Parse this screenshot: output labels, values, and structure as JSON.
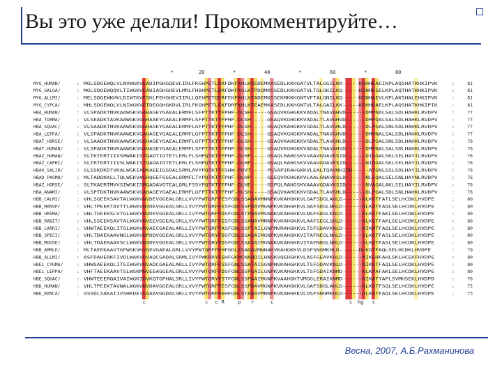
{
  "slide": {
    "title": "Вы это уже делали! Прокомментируйте…",
    "footer": "Весна, 2007, А.Б.Рахманинова"
  },
  "alignment": {
    "ruler_marks": [
      {
        "col": 27,
        "label": "*"
      },
      {
        "col": 36,
        "label": "20"
      },
      {
        "col": 46,
        "label": "*"
      },
      {
        "col": 56,
        "label": "40"
      },
      {
        "col": 66,
        "label": "*"
      },
      {
        "col": 76,
        "label": "60"
      },
      {
        "col": 86,
        "label": "*"
      },
      {
        "col": 96,
        "label": "80"
      }
    ],
    "rows": [
      {
        "name": "MYG_HUMAN/",
        "seq": "MGLSDGEWQLVLNVWGKVEADIPGHGQEVLIRLFKGHPETLEKFDKFKHLKSEDEMKASEDLKKHGATVLTALGGILKK-----KGHHEAEIKPLAQSHATKHKIPVK",
        "end": "81"
      },
      {
        "name": "MYG_GALGA/",
        "seq": "MGLSDQEWQQVLTIWGKVEADIAGHGHEVLMRLFHDHPETLDRFDKFKGLKTPDQMKGSEDLKKHGATVLTQLGKILKQ-----KGNHESELKPLAQTHATKHKIPVK",
        "end": "81"
      },
      {
        "name": "MYG_ALLMI/",
        "seq": "MELSDQEWKHVLDIWTKVESKLPEHGHEVIIRLLQEHPETQERFEKFKHLKTADEMKSSEKMKKHGNTVFTALGNILKQ-----KGNHAEVLKPLAKSHALEHKIPVK",
        "end": "81"
      },
      {
        "name": "MYG_CYPCA/",
        "seq": "MHLSDGEWQLVLNIWGKVETDEGGHGKDVLIRLFKGHPETLEKFDRFKHLKTEAEMKASEDLKKHGNTVLTALGAILKK-----KGHHDAELKPLAQSHATKHKIPIK",
        "end": "81"
      },
      {
        "name": "HBA_HUMAN/",
        "seq": "VLSPADKTNVKAAWGKVGAHAGEYGAEALERMFLSFPTTKTYFPHF-DLSH-----GSAQVKGHGKKVADALTNAVAHVD------DMPNALSALSDLHAHKLRVDPV",
        "end": "77"
      },
      {
        "name": "HBA_TORMA/",
        "seq": "VLSEADKTAVKAAWGKVGGHAAEYGAEALERMFLSFPTTKTYFPHF-DLSH-----GSAQVKGHGKKVADALTLAVGHVD------DMPQALSALSDLHAHKLRVDPV",
        "end": "77"
      },
      {
        "name": "HBA_SQUAC/",
        "seq": "VLSAADKTNVKAAWSKVGGHAGEYGAEALERMFLGFPTTKTYFPHF-DLSH-----GSAQVKAHGKKVGDALTLAVGHLD------DLPGALSNLSDLHAHKLRVDPV",
        "end": "77"
      },
      {
        "name": "HBA_LEPPA/",
        "seq": "VLSPADKTNVKAAWEKVGAHAGEYGAEALERMFLGFPTTKTYFPHF-DLSH-----GSAQVKGHGKKVADALTNAVGHVD------DMPNALSALSDLHAHKLRVDPV",
        "end": "77"
      },
      {
        "name": "HBAT_HORSE/",
        "seq": "VLSAADKTNVKAAWSKVGGHAGEYGAEALERMFLGFPTTKTYFPHF-DLSH-----GSAQVKAHGKKVGDALTLAVGHLD------DLPGALSNLSDLHAHKLRVDPV",
        "end": "76"
      },
      {
        "name": "HBAT_HUMAN/",
        "seq": "VLSPADKTNVKAAWGKVGAHAGEYGAEALERMFLSFPTTKTYFPHF-DLSH-----GSAQVKGHGKKVADALTNAVAHVD------DMPNALSALSDLHAHKLRVDPV",
        "end": "76"
      },
      {
        "name": "HBAZ_HUMAN/",
        "seq": "SLTKTERTIIVSMWAKISTQADTIGTETLERLFLSHPQTKTYFPHF-DLHP-----GSAQLRAHGSKVVAAVGDAVKSID------DIGGALSKLSELHAYILRVDPV",
        "end": "76"
      },
      {
        "name": "HBAZ_CAPHI/",
        "seq": "SLTRTERTIIVSLWAKISTQADAIGTETLERLFLSHPQTKTYFPHF-DLHP-----GSAQLRAHGSKVVAAVGDAVKSID------NIGGALSKLSELHAYILRVDPV",
        "end": "76"
      },
      {
        "name": "HBA4_SALIR/",
        "seq": "SLSSKDKDTVKALWGKIADKAEEIGSDALSRMLAVYPQTKTYFSHW-PDVT-----PGSAPIRAHGKKVLEALTQAVNHIDD-----ATGNLSSLSDLHAYILRVDPV",
        "end": "76"
      },
      {
        "name": "HBAD_PASMO/",
        "seq": "MLTADDKKLLTQLWEKVAGHQEEFGSEALQRMFLTYPQTKTYFPHF-DLHP-----GSEQVRGHGKKVLAALGNAVKSLD------NLSQALSELSNLHAYNLRVDPV",
        "end": "76"
      },
      {
        "name": "HBAZ_HORSE/",
        "seq": "SLTKAERTMVVSIWGKISMQADAVGTEALQRLFSSYPQTKTYFPHF-DLHE-----GSPQLRAHGSKVAAAVGDAVKSID------NVAGALAKLSELHAYILRVDPV",
        "end": "76"
      },
      {
        "name": "HBA_ANAMI/",
        "seq": "VLSPTDKTNVKAAWSKVGAHAGEYGAEALERMFLGFPTTKTYFPHF-DLSH-----GSAQVKAHGKKVGDALTLAVGHLD------DLPGALSDLSNLHAHKLRVDPV",
        "end": "76"
      },
      {
        "name": "HBB_CALMI/",
        "seq": "VHLSGEEKSAVTALWGKVNVDEVGGEALGRLLVVYPWTQRFFESFGDLSSADAVMNNPKVKAHGKKVLGAFSDGLAHLD------NLKGTFATLSELHCDKLHVDPE",
        "end": "80"
      },
      {
        "name": "HBB_MANSP/",
        "seq": "VHLTPEEKTAVTTLWGKVNVDEVGGEALGRLLVVYPWTQRFFESFGDLSSPDAVMGNPKVKAHGKKVLGAFSDGLNHLD------NLKGTFAQLSELHCDKLHVDPE",
        "end": "80"
      },
      {
        "name": "HBB_URSMA/",
        "seq": "VHLTGEEKSLVTGLWGKVNVDEVGGEALGRLLIVYPWTQRFFDSFGDLSTPDAVMSNAKVKAHGKKVLNSFSDGLKNLD------NLKGTFAKLSELHCDKLHVDPE",
        "end": "80"
      },
      {
        "name": "HBB_RABIT/",
        "seq": "VHLSSEEKSAVTALWGKVNVEEVGGEALGRLLVVYPWTQRFFESFGDLSSANAVMNNPKVKAHGKKVLAAFSEGLSHLD------NLKGTFAKLSELHCDKLHVDPE",
        "end": "80"
      },
      {
        "name": "HBB_LARRI/",
        "seq": "VHWTAEEKQLITGLWGKVNVAECGAEALARLLIVYPWTQRFFASFGNLSSPTAILGNPMVRAHGKKVLTSFGDAVKNLD------NIKNTFAQLSELHCDKLHVDPE",
        "end": "80"
      },
      {
        "name": "HBB_SPECI/",
        "seq": "VHLTDAEKAAVNGLWGKVNPDDVGGEALGRLLVVYPWTQRYFDSFGDLSSASAIMGNPKVKAHGKKVITAFNEGLNHLD------SLKGTFASLSELHCDKLHVDPE",
        "end": "80"
      },
      {
        "name": "HBB_MOUSE/",
        "seq": "VHLTDAEKAAVSCLWGKVNSDEVGGEALGRLLVVYPWTQRYFDSFGDLSSASAIMGNAKVKAHGKKVITAFNDGLNHLD------SLKGTFASLSELHCDKLHVDPE",
        "end": "80"
      },
      {
        "name": "HBB_AMMLE/",
        "seq": "MLTAEEKAAVTGFWGKVKVDEVGAEALGRLLVVYPWTQRFFEHFGDLSSADAVMNNAKVKAHGKKVLDSFSNGMKHLD------DLKGTFAQLSELHCDKLHVDPE",
        "end": "79"
      },
      {
        "name": "HBB_ALLMI/",
        "seq": "ASFDAHERKFIVDLWAKVDVAQCGADALSRMLIVYPWKRRYFEHFGKMCNAHDILHNSKVQEHGKKVLASFGEAVKHLD------NIKGHFAHLSKLHCEKFHVDPE",
        "end": "80"
      },
      {
        "name": "HBE1_CYGMA/",
        "seq": "VHWSAEEKQLITSIWGKVNVADCGAEALARLLIVYPWTQRFFSSFGNLSSATAISGNPNVKAHGKKVLTSFGDAVKNLD------NIKGTFAQLSELHCDKLHVDPE",
        "end": "80"
      },
      {
        "name": "HBE1_LEPPA/",
        "seq": "VHFTAEEKAAVTSLWSKMNVEEAGGEALGRLLVVYPWTQRFFDSFGNLSSPSAILGNPKVKAHGKKVLTSFGDAIKNMD------NLKPAFAKLSELHCDKLHVDPE",
        "end": "80"
      },
      {
        "name": "HBE_SQUAC/",
        "seq": "VHWTEEERQAIVAIWGKIDVKQTGPHALSRLLIVYPWTQRYFSTFGNLSSPAAIMGNPKVAAHGKTVMGGLERAIKNMD------NIKATYAPLSVMHSEKLHVDPD",
        "end": "76"
      },
      {
        "name": "HBD_HUMAN/",
        "seq": "VHLTPEEKTAVNALWGKVNVDAVGGEALGRLLVVYPWTQRFFESFGDLSSPDAVMGNPKVKAHGKKVLGAFSDGLAHLD------NLKGTFSQLSELHCDKLHVDPE",
        "end": "75"
      },
      {
        "name": "HBE_RANCA/",
        "seq": "GSSDLSAKAIIVSHKDEIEAAAVGGDALGRLLVVYPWTQRFFEHFGDLSTADAVMNNPKVKAHGKKVLDSFSNGMKHLD------DLKGTFAQLSELHCDKLHVDPE",
        "end": "73"
      }
    ],
    "bottom_marks": [
      {
        "col": 18,
        "label": "c"
      },
      {
        "col": 37,
        "label": "c"
      },
      {
        "col": 40,
        "label": "c"
      },
      {
        "col": 42,
        "label": "R"
      },
      {
        "col": 47,
        "label": "p"
      },
      {
        "col": 51,
        "label": "r"
      },
      {
        "col": 57,
        "label": "c"
      },
      {
        "col": 81,
        "label": "c"
      },
      {
        "col": 84,
        "label": "hg"
      },
      {
        "col": 88,
        "label": "c"
      }
    ],
    "colors": {
      "strong": "#e23a3a",
      "medium": "#f08a8a",
      "weak": "#f6e26a",
      "faint": "#fbeea8"
    },
    "highlight_columns": [
      {
        "col": 18,
        "level": "strong"
      },
      {
        "col": 19,
        "level": "weak"
      },
      {
        "col": 37,
        "level": "weak"
      },
      {
        "col": 38,
        "level": "medium"
      },
      {
        "col": 40,
        "level": "weak"
      },
      {
        "col": 41,
        "level": "strong"
      },
      {
        "col": 42,
        "level": "weak"
      },
      {
        "col": 46,
        "level": "weak"
      },
      {
        "col": 47,
        "level": "strong"
      },
      {
        "col": 48,
        "level": "medium"
      },
      {
        "col": 50,
        "level": "weak"
      },
      {
        "col": 51,
        "level": "strong"
      },
      {
        "col": 52,
        "level": "weak"
      },
      {
        "col": 54,
        "level": "faint"
      },
      {
        "col": 57,
        "level": "medium"
      },
      {
        "col": 72,
        "level": "faint"
      },
      {
        "col": 76,
        "level": "medium"
      },
      {
        "col": 77,
        "level": "weak"
      },
      {
        "col": 80,
        "level": "strong"
      },
      {
        "col": 81,
        "level": "strong"
      },
      {
        "col": 82,
        "level": "weak"
      },
      {
        "col": 84,
        "level": "medium"
      },
      {
        "col": 85,
        "level": "strong"
      },
      {
        "col": 86,
        "level": "weak"
      },
      {
        "col": 88,
        "level": "strong"
      },
      {
        "col": 89,
        "level": "weak"
      },
      {
        "col": 101,
        "level": "faint"
      }
    ]
  }
}
